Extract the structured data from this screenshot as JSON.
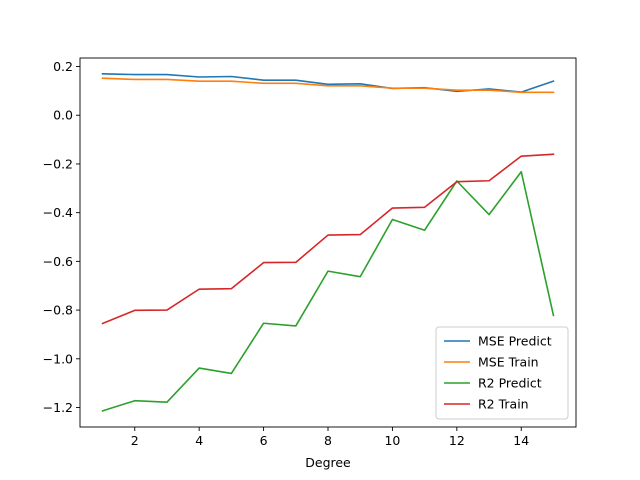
{
  "chart_data": {
    "type": "line",
    "title": "",
    "xlabel": "Degree",
    "ylabel": "",
    "x": [
      1,
      2,
      3,
      4,
      5,
      6,
      7,
      8,
      9,
      10,
      11,
      12,
      13,
      14,
      15
    ],
    "xlim": [
      0.3,
      15.7
    ],
    "ylim": [
      -1.28,
      0.235
    ],
    "x_ticks": [
      2,
      4,
      6,
      8,
      10,
      12,
      14
    ],
    "y_ticks": [
      0.2,
      0.0,
      -0.2,
      -0.4,
      -0.6,
      -0.8,
      -1.0,
      -1.2
    ],
    "grid": false,
    "legend_position": "lower-right",
    "series": [
      {
        "name": "MSE Predict",
        "color": "#1f77b4",
        "values": [
          0.17,
          0.167,
          0.167,
          0.157,
          0.159,
          0.144,
          0.144,
          0.127,
          0.129,
          0.11,
          0.113,
          0.098,
          0.108,
          0.095,
          0.14
        ]
      },
      {
        "name": "MSE Train",
        "color": "#ff7f0e",
        "values": [
          0.152,
          0.147,
          0.147,
          0.14,
          0.14,
          0.131,
          0.131,
          0.121,
          0.121,
          0.111,
          0.111,
          0.103,
          0.103,
          0.094,
          0.094
        ]
      },
      {
        "name": "R2 Predict",
        "color": "#2ca02c",
        "values": [
          -1.214,
          -1.172,
          -1.178,
          -1.038,
          -1.06,
          -0.854,
          -0.865,
          -0.64,
          -0.663,
          -0.428,
          -0.472,
          -0.27,
          -0.408,
          -0.232,
          -0.822
        ]
      },
      {
        "name": "R2 Train",
        "color": "#d62728",
        "values": [
          -0.855,
          -0.801,
          -0.8,
          -0.714,
          -0.712,
          -0.605,
          -0.604,
          -0.492,
          -0.49,
          -0.381,
          -0.378,
          -0.273,
          -0.269,
          -0.168,
          -0.16
        ]
      }
    ]
  }
}
